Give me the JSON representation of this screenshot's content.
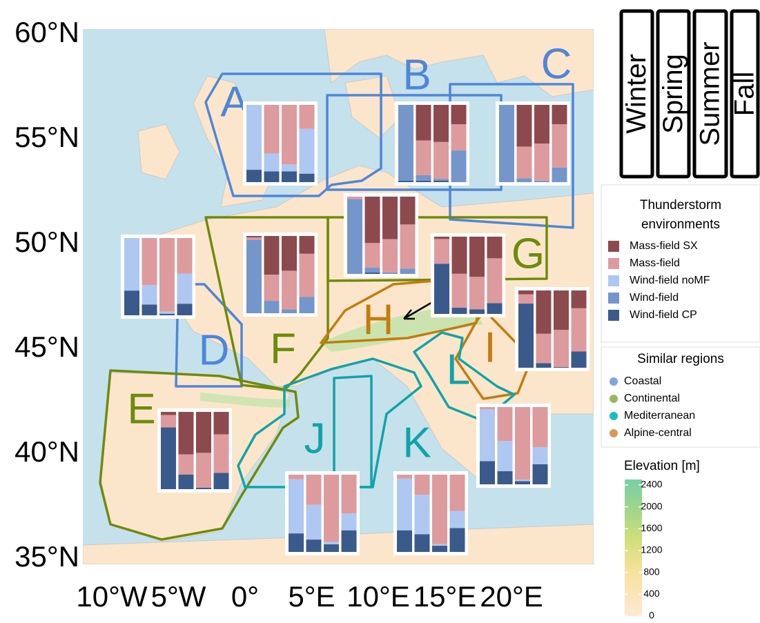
{
  "map": {
    "lat_ticks": [
      {
        "value": 60,
        "label": "60°N"
      },
      {
        "value": 55,
        "label": "55°N"
      },
      {
        "value": 50,
        "label": "50°N"
      },
      {
        "value": 45,
        "label": "45°N"
      },
      {
        "value": 40,
        "label": "40°N"
      },
      {
        "value": 35,
        "label": "35°N"
      }
    ],
    "lon_ticks": [
      {
        "value": -10,
        "label": "10°W"
      },
      {
        "value": -5,
        "label": "5°W"
      },
      {
        "value": 0,
        "label": "0°"
      },
      {
        "value": 5,
        "label": "5°E"
      },
      {
        "value": 10,
        "label": "10°E"
      },
      {
        "value": 15,
        "label": "15°E"
      },
      {
        "value": 20,
        "label": "20°E"
      }
    ],
    "regions": [
      {
        "label": "A",
        "color": "#4f86d8"
      },
      {
        "label": "B",
        "color": "#4f86d8"
      },
      {
        "label": "C",
        "color": "#4f86d8"
      },
      {
        "label": "D",
        "color": "#4f86d8"
      },
      {
        "label": "E",
        "color": "#6f8a0c"
      },
      {
        "label": "F",
        "color": "#6f8a0c"
      },
      {
        "label": "G",
        "color": "#6f8a0c"
      },
      {
        "label": "H",
        "color": "#c27c0e"
      },
      {
        "label": "I",
        "color": "#c27c0e"
      },
      {
        "label": "J",
        "color": "#11a3a8"
      },
      {
        "label": "K",
        "color": "#11a3a8"
      },
      {
        "label": "L",
        "color": "#11a3a8"
      }
    ],
    "insets": [
      {
        "bars": [
          [
            0,
            0,
            84,
            0,
            16
          ],
          [
            0,
            63,
            23,
            0,
            14
          ],
          [
            0,
            77,
            9,
            0,
            14
          ],
          [
            0,
            31,
            58,
            0,
            11
          ]
        ]
      },
      {
        "bars": [
          [
            0,
            0,
            0,
            98,
            2
          ],
          [
            46,
            45,
            0,
            7,
            2
          ],
          [
            48,
            48,
            0,
            2,
            2
          ],
          [
            25,
            34,
            0,
            41,
            0
          ]
        ]
      },
      {
        "bars": [
          [
            0,
            0,
            0,
            100,
            0
          ],
          [
            54,
            41,
            0,
            5,
            0
          ],
          [
            50,
            48,
            0,
            2,
            0
          ],
          [
            25,
            56,
            0,
            19,
            0
          ]
        ]
      },
      {
        "bars": [
          [
            0,
            3,
            0,
            97,
            0
          ],
          [
            60,
            32,
            0,
            6,
            2
          ],
          [
            55,
            43,
            0,
            2,
            0
          ],
          [
            36,
            57,
            0,
            7,
            0
          ]
        ]
      },
      {
        "bars": [
          [
            2,
            3,
            0,
            95,
            0
          ],
          [
            50,
            34,
            0,
            16,
            0
          ],
          [
            45,
            50,
            0,
            5,
            0
          ],
          [
            23,
            56,
            0,
            21,
            0
          ]
        ]
      },
      {
        "bars": [
          [
            0,
            0,
            68,
            0,
            32
          ],
          [
            0,
            61,
            25,
            0,
            14
          ],
          [
            0,
            95,
            3,
            0,
            2
          ],
          [
            0,
            46,
            39,
            0,
            15
          ]
        ]
      },
      {
        "bars": [
          [
            3,
            32,
            0,
            0,
            65
          ],
          [
            48,
            44,
            0,
            0,
            8
          ],
          [
            52,
            42,
            0,
            0,
            6
          ],
          [
            28,
            58,
            0,
            0,
            14
          ]
        ]
      },
      {
        "bars": [
          [
            5,
            12,
            0,
            0,
            83
          ],
          [
            56,
            38,
            0,
            0,
            6
          ],
          [
            51,
            48,
            0,
            0,
            1
          ],
          [
            23,
            56,
            0,
            0,
            21
          ]
        ]
      },
      {
        "bars": [
          [
            4,
            16,
            0,
            0,
            80
          ],
          [
            55,
            26,
            0,
            0,
            19
          ],
          [
            53,
            45,
            0,
            0,
            2
          ],
          [
            29,
            50,
            0,
            0,
            21
          ]
        ]
      },
      {
        "bars": [
          [
            0,
            3,
            67,
            0,
            30
          ],
          [
            0,
            44,
            39,
            0,
            17
          ],
          [
            0,
            94,
            2,
            0,
            4
          ],
          [
            0,
            52,
            22,
            0,
            26
          ]
        ]
      },
      {
        "bars": [
          [
            0,
            6,
            70,
            0,
            24
          ],
          [
            0,
            39,
            45,
            0,
            16
          ],
          [
            0,
            87,
            3,
            0,
            10
          ],
          [
            0,
            50,
            22,
            0,
            28
          ]
        ]
      },
      {
        "bars": [
          [
            0,
            5,
            67,
            0,
            28
          ],
          [
            0,
            26,
            51,
            0,
            23
          ],
          [
            0,
            90,
            2,
            0,
            8
          ],
          [
            0,
            47,
            22,
            0,
            31
          ]
        ]
      }
    ]
  },
  "seasons": [
    "Winter",
    "Spring",
    "Summer",
    "Fall"
  ],
  "environments_legend": {
    "title_lines": [
      "Thunderstorm",
      "environments"
    ],
    "items": [
      {
        "name": "Mass-field SX",
        "color": "#8c4a4f"
      },
      {
        "name": "Mass-field",
        "color": "#dd9b9e"
      },
      {
        "name": "Wind-field noMF",
        "color": "#aec8f2"
      },
      {
        "name": "Wind-field",
        "color": "#7496cb"
      },
      {
        "name": "Wind-field CP",
        "color": "#3b5a8c"
      }
    ]
  },
  "regions_legend": {
    "title": "Similar regions",
    "items": [
      {
        "name": "Coastal",
        "color": "#7fa4e0"
      },
      {
        "name": "Continental",
        "color": "#9cb65a"
      },
      {
        "name": "Mediterranean",
        "color": "#1cbdbd"
      },
      {
        "name": "Alpine-central",
        "color": "#d49a5a"
      }
    ]
  },
  "elevation": {
    "title": "Elevation [m]",
    "lim": [
      0,
      2500
    ],
    "ticks": [
      0,
      400,
      800,
      1200,
      1600,
      2000,
      2400
    ]
  }
}
